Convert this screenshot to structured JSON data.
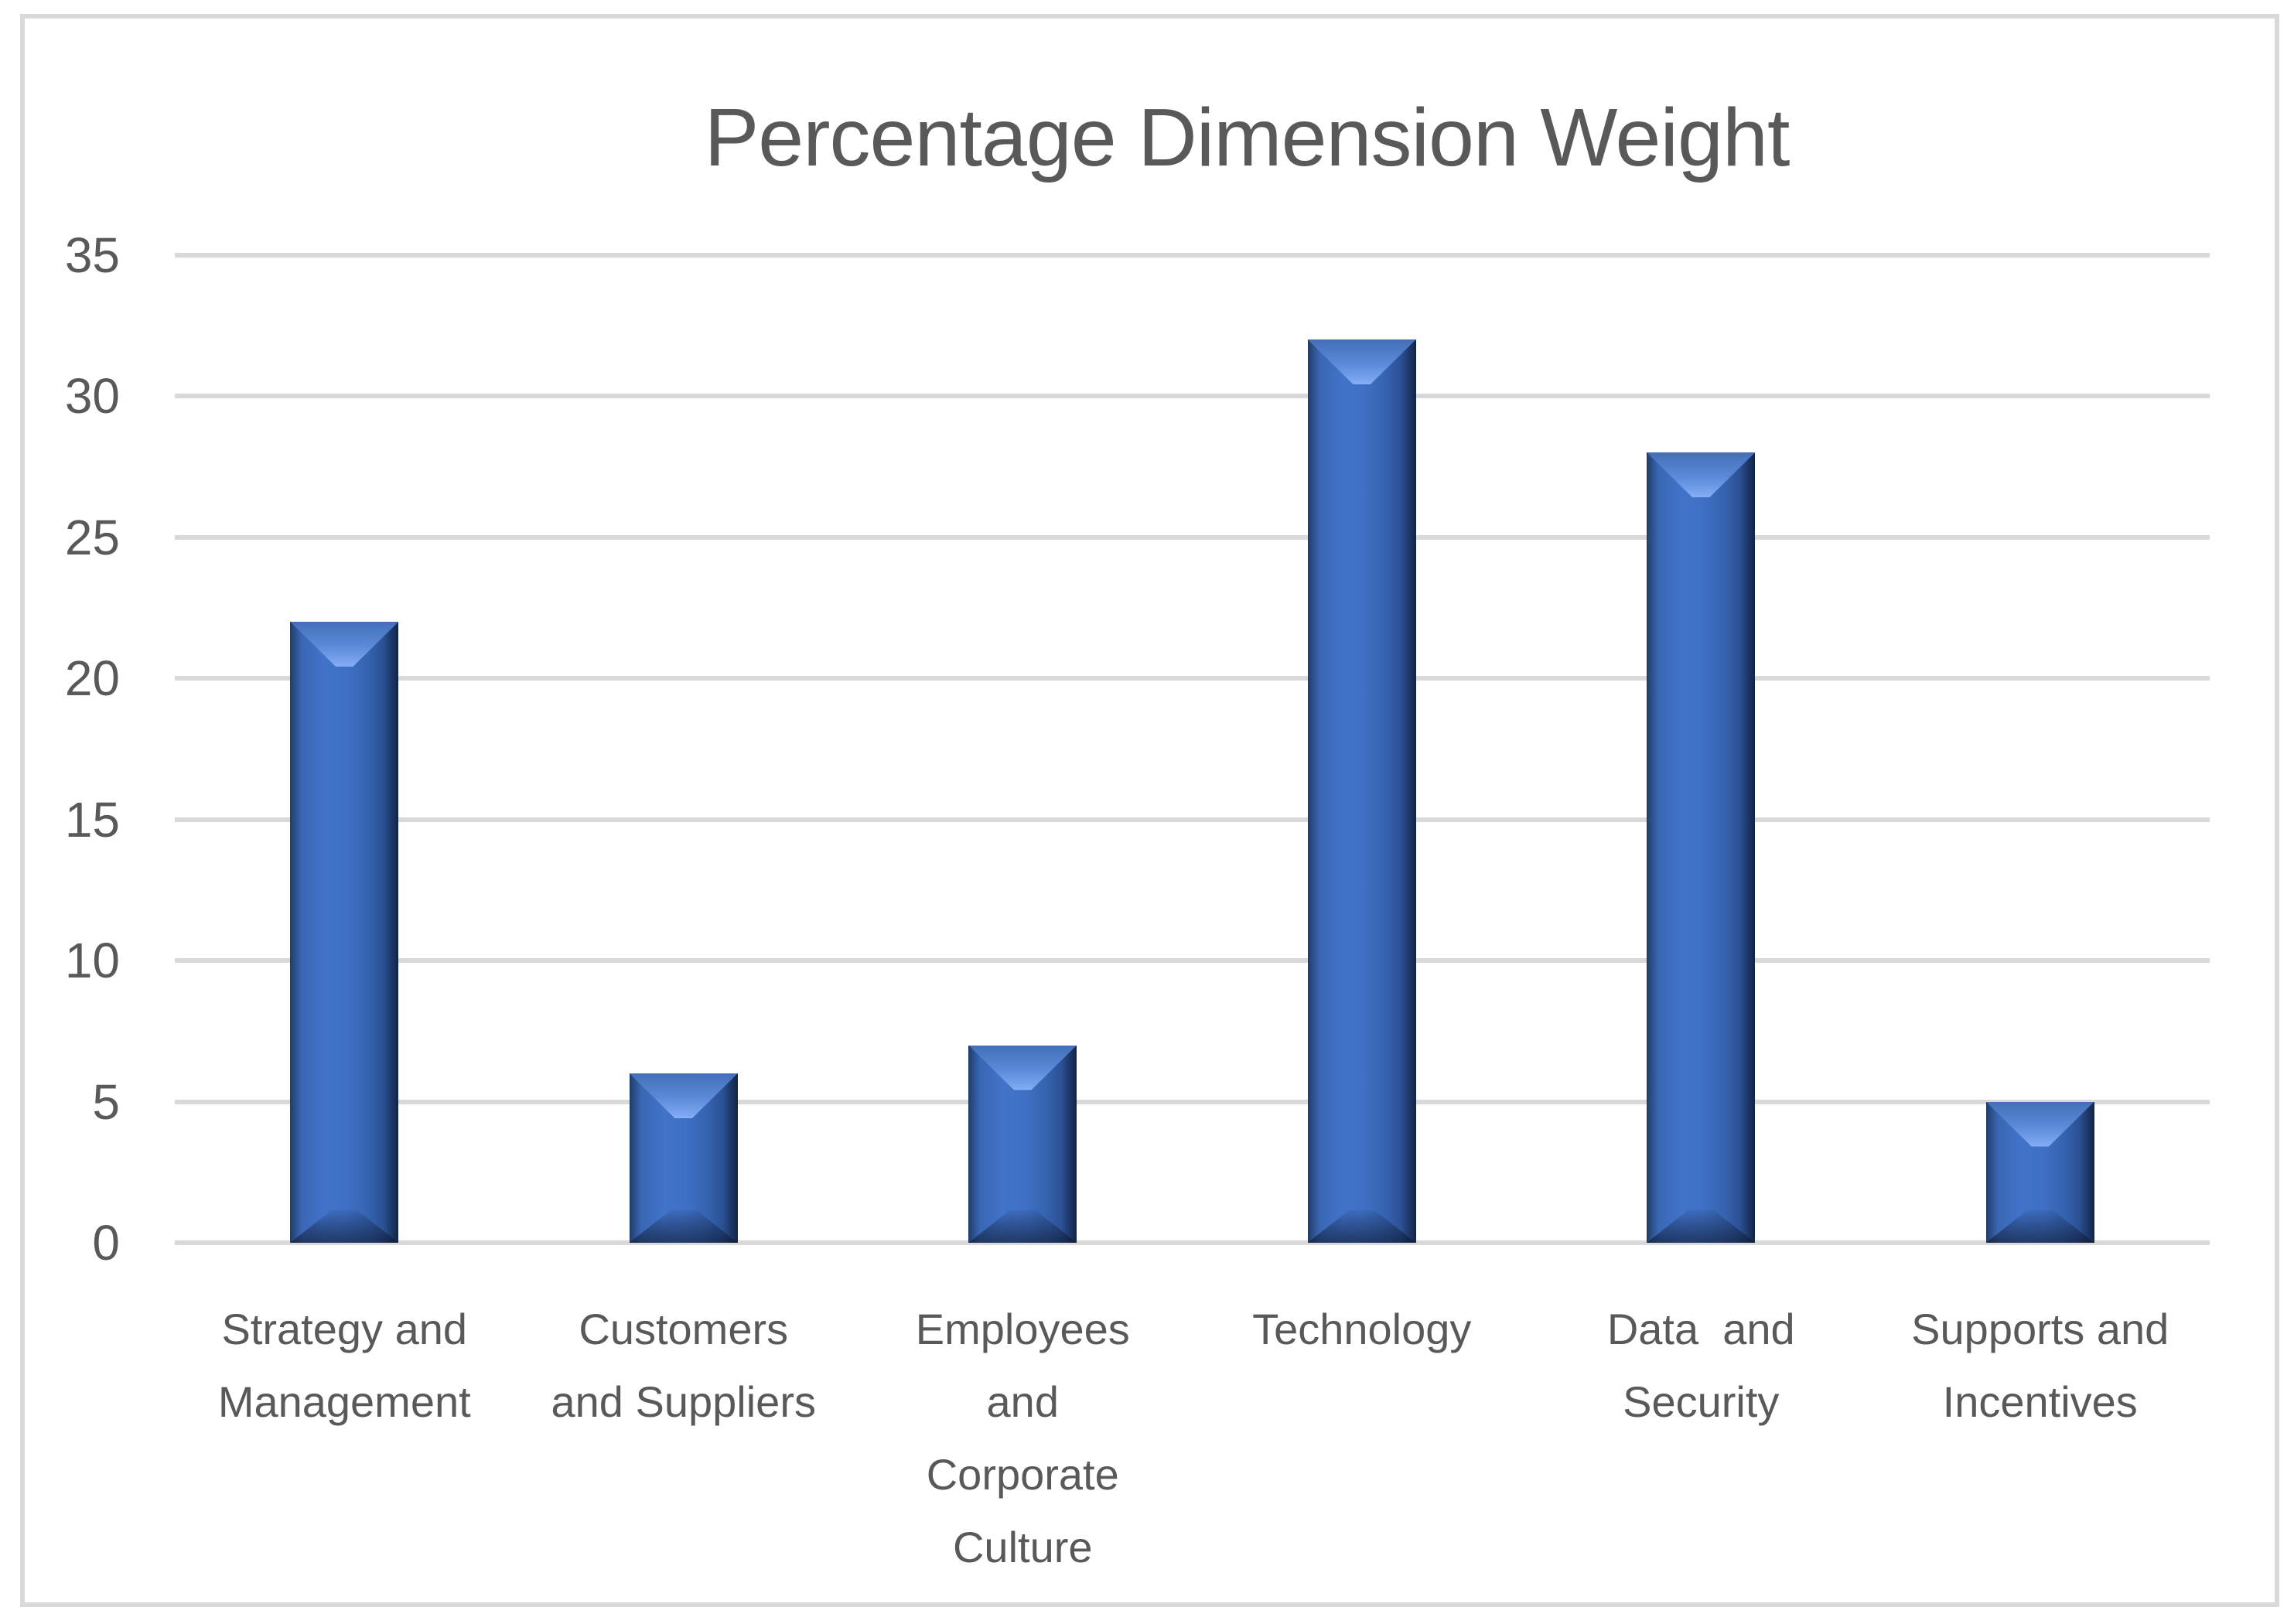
{
  "title": "Percentage Dimension Weight",
  "chart_data": {
    "type": "bar",
    "title": "Percentage Dimension Weight",
    "categories": [
      "Strategy and Management",
      "Customers and Suppliers",
      "Employees and Corporate Culture",
      "Technology",
      "Data  and Security",
      "Supports and Incentives"
    ],
    "category_label_lines": [
      [
        "Strategy and",
        "Management"
      ],
      [
        "Customers",
        "and Suppliers"
      ],
      [
        "Employees",
        "and",
        "Corporate",
        "Culture"
      ],
      [
        "Technology"
      ],
      [
        "Data  and",
        "Security"
      ],
      [
        "Supports and",
        "Incentives"
      ]
    ],
    "values": [
      22,
      6,
      7,
      32,
      28,
      5
    ],
    "xlabel": "",
    "ylabel": "",
    "ylim": [
      0,
      35
    ],
    "ytick_step": 5,
    "yticks": [
      0,
      5,
      10,
      15,
      20,
      25,
      30,
      35
    ],
    "grid": true,
    "legend": false,
    "bar_style": "3d-bevel"
  },
  "colors": {
    "background": "#ffffff",
    "bar_main": "#3f70c5",
    "bar_edge_dark": "#122442",
    "bar_highlight": "#86aff5",
    "bar_bevel_shadow": "#1b3560",
    "gridline": "#d9d9d9",
    "chart_border": "#d9d9d9",
    "text": "#595959"
  }
}
